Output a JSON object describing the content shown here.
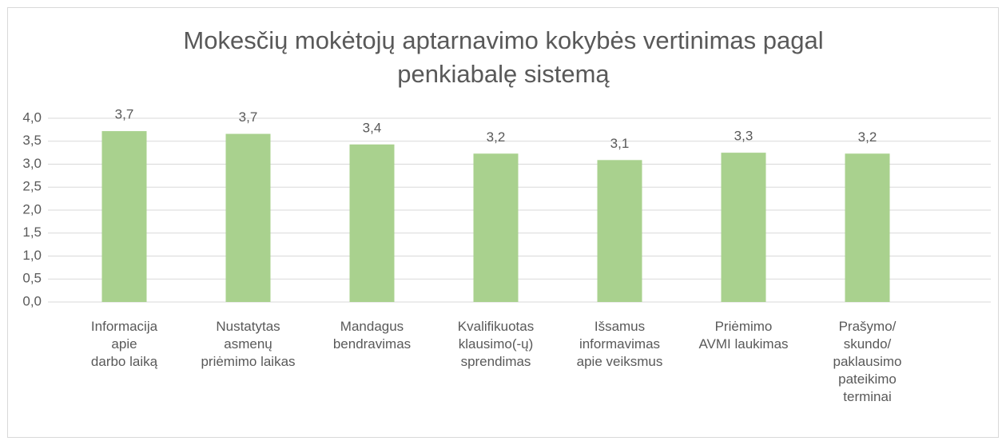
{
  "chart_data": {
    "type": "bar",
    "title": "Mokesčių mokėtojų aptarnavimo kokybės vertinimas pagal penkiabalę sistemą",
    "categories": [
      "Informacija\napie\ndarbo laiką",
      "Nustatytas\nasmenų\npriėmimo laikas",
      "Mandagus\nbendravimas",
      "Kvalifikuotas\nklausimo(-ų)\nsprendimas",
      "Išsamus\ninformavimas\napie veiksmus",
      "Priėmimo\nAVMI laukimas",
      "Prašymo/\nskundo/\npaklausimo\npateikimo\nterminai"
    ],
    "values": [
      3.72,
      3.66,
      3.43,
      3.23,
      3.09,
      3.25,
      3.23
    ],
    "value_labels": [
      "3,7",
      "3,7",
      "3,4",
      "3,2",
      "3,1",
      "3,3",
      "3,2"
    ],
    "color": "#a9d18e",
    "ylim": [
      0,
      4
    ],
    "yticks": [
      {
        "value": 0,
        "label": "0,0"
      },
      {
        "value": 0.5,
        "label": "0,5"
      },
      {
        "value": 1,
        "label": "1,0"
      },
      {
        "value": 1.5,
        "label": "1,5"
      },
      {
        "value": 2,
        "label": "2,0"
      },
      {
        "value": 2.5,
        "label": "2,5"
      },
      {
        "value": 3,
        "label": "3,0"
      },
      {
        "value": 3.5,
        "label": "3,5"
      },
      {
        "value": 4,
        "label": "4,0"
      }
    ],
    "grid": true
  }
}
